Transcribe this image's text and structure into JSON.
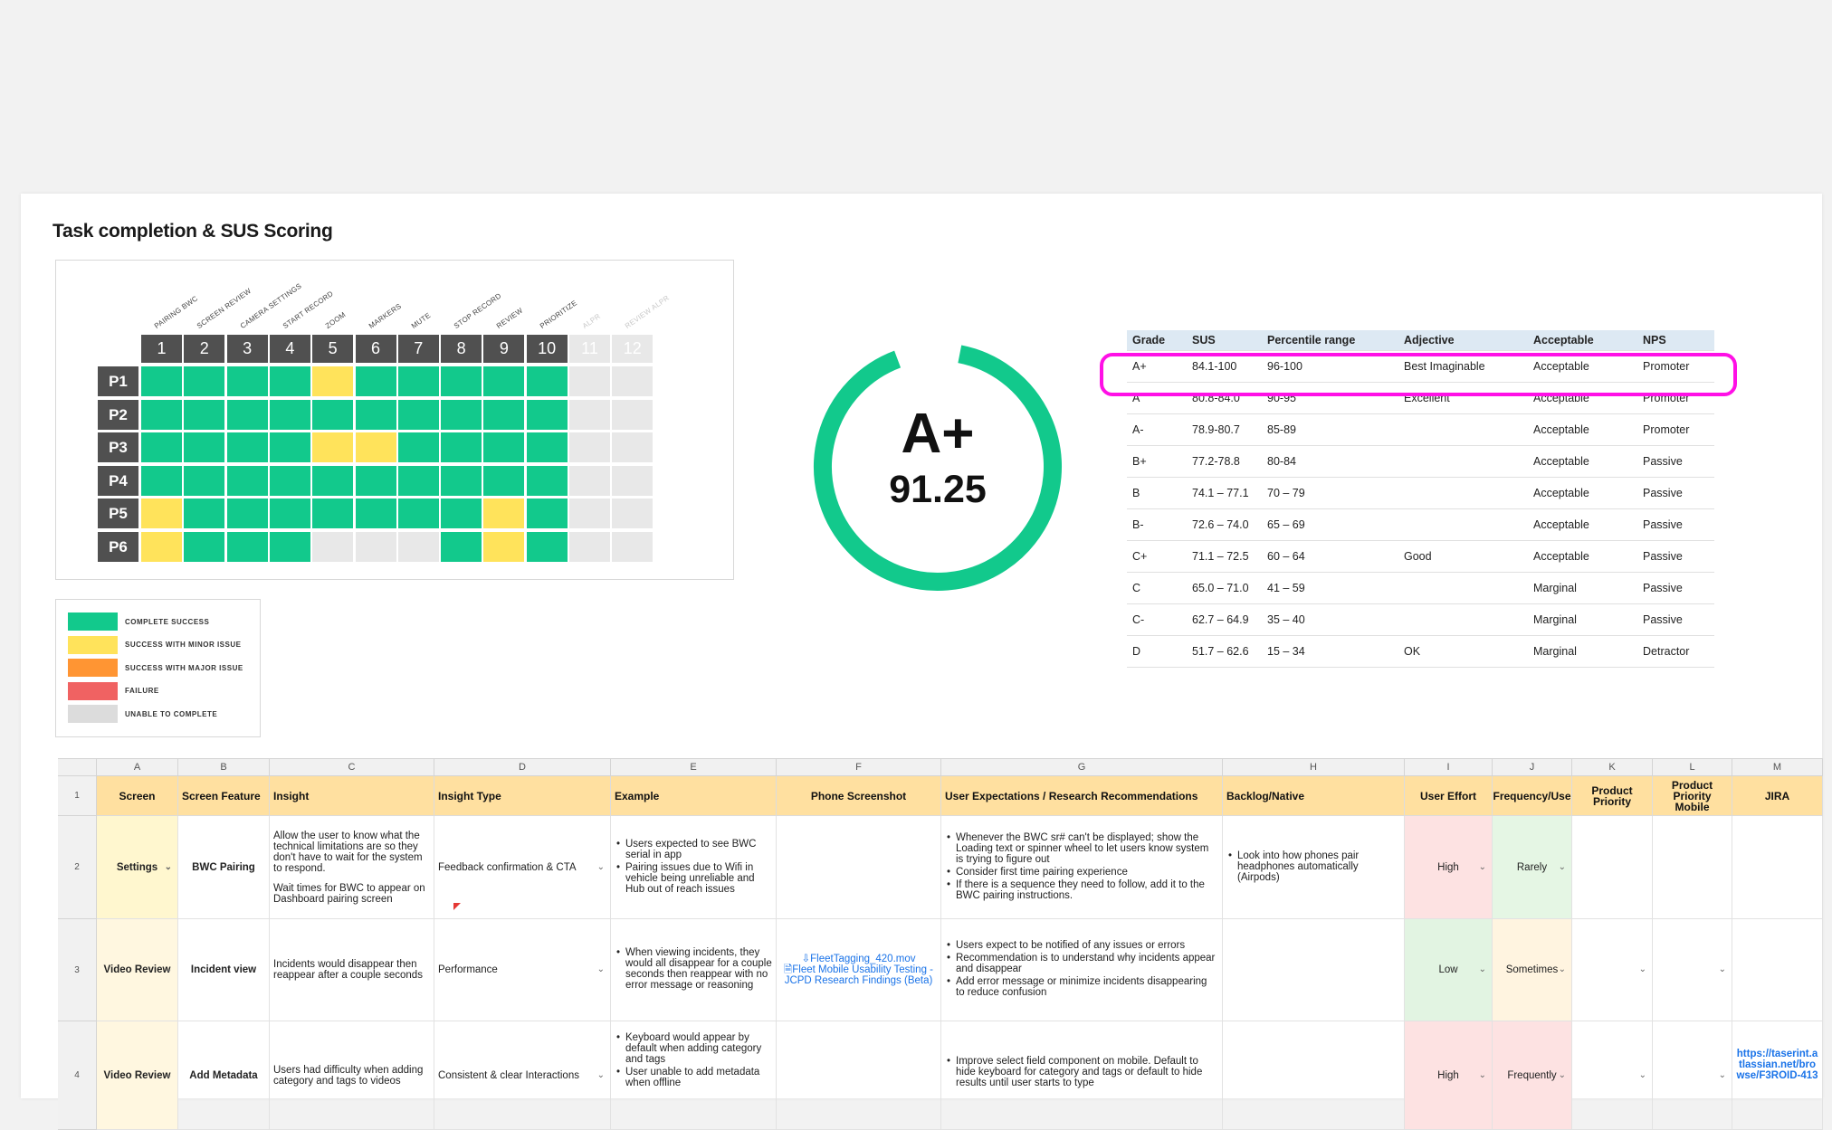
{
  "title": "Task completion & SUS Scoring",
  "tasks": {
    "labels": [
      "PAIRING BWC",
      "SCREEN REVIEW",
      "CAMERA SETTINGS",
      "START RECORD",
      "ZOOM",
      "MARKERS",
      "MUTE",
      "STOP RECORD",
      "REVIEW",
      "PRIORITIZE",
      "ALPR",
      "REVIEW ALPR"
    ],
    "numbers": [
      "1",
      "2",
      "3",
      "4",
      "5",
      "6",
      "7",
      "8",
      "9",
      "10",
      "11",
      "12"
    ]
  },
  "participants": [
    {
      "label": "P1",
      "cells": [
        "g",
        "g",
        "g",
        "g",
        "y",
        "g",
        "g",
        "g",
        "g",
        "g",
        "n",
        "n"
      ]
    },
    {
      "label": "P2",
      "cells": [
        "g",
        "g",
        "g",
        "g",
        "g",
        "g",
        "g",
        "g",
        "g",
        "g",
        "n",
        "n"
      ]
    },
    {
      "label": "P3",
      "cells": [
        "g",
        "g",
        "g",
        "g",
        "y",
        "y",
        "g",
        "g",
        "g",
        "g",
        "n",
        "n"
      ]
    },
    {
      "label": "P4",
      "cells": [
        "g",
        "g",
        "g",
        "g",
        "g",
        "g",
        "g",
        "g",
        "g",
        "g",
        "n",
        "n"
      ]
    },
    {
      "label": "P5",
      "cells": [
        "y",
        "g",
        "g",
        "g",
        "g",
        "g",
        "g",
        "g",
        "y",
        "g",
        "n",
        "n"
      ]
    },
    {
      "label": "P6",
      "cells": [
        "y",
        "g",
        "g",
        "g",
        "n",
        "n",
        "n",
        "g",
        "y",
        "g",
        "n",
        "n"
      ]
    }
  ],
  "legend": [
    {
      "label": "COMPLETE SUCCESS",
      "color": "#12c98c"
    },
    {
      "label": "SUCCESS WITH MINOR ISSUE",
      "color": "#ffe35b"
    },
    {
      "label": "SUCCESS WITH MAJOR ISSUE",
      "color": "#ff9533"
    },
    {
      "label": "FAILURE",
      "color": "#f06262"
    },
    {
      "label": "UNABLE TO COMPLETE",
      "color": "#dcdcdc"
    }
  ],
  "score": {
    "grade": "A+",
    "value": "91.25",
    "ring_fraction": 0.9125,
    "ring_color": "#12c98c"
  },
  "sus_table": {
    "headers": [
      "Grade",
      "SUS",
      "Percentile range",
      "Adjective",
      "Acceptable",
      "NPS"
    ],
    "rows": [
      [
        "A+",
        "84.1-100",
        "96-100",
        "Best Imaginable",
        "Acceptable",
        "Promoter"
      ],
      [
        "A",
        "80.8-84.0",
        "90-95",
        "Excellent",
        "Acceptable",
        "Promoter"
      ],
      [
        "A-",
        "78.9-80.7",
        "85-89",
        "",
        "Acceptable",
        "Promoter"
      ],
      [
        "B+",
        "77.2-78.8",
        "80-84",
        "",
        "Acceptable",
        "Passive"
      ],
      [
        "B",
        "74.1 – 77.1",
        "70 – 79",
        "",
        "Acceptable",
        "Passive"
      ],
      [
        "B-",
        "72.6 – 74.0",
        "65 – 69",
        "",
        "Acceptable",
        "Passive"
      ],
      [
        "C+",
        "71.1 – 72.5",
        "60 – 64",
        "Good",
        "Acceptable",
        "Passive"
      ],
      [
        "C",
        "65.0 – 71.0",
        "41 – 59",
        "",
        "Marginal",
        "Passive"
      ],
      [
        "C-",
        "62.7 – 64.9",
        "35 – 40",
        "",
        "Marginal",
        "Passive"
      ],
      [
        "D",
        "51.7 – 62.6",
        "15 – 34",
        "OK",
        "Marginal",
        "Detractor"
      ]
    ],
    "highlight_color": "#ff10e6"
  },
  "sheet": {
    "col_letters": [
      "A",
      "B",
      "C",
      "D",
      "E",
      "F",
      "G",
      "H",
      "I",
      "J",
      "K",
      "L",
      "M"
    ],
    "headers": [
      "Screen",
      "Screen Feature",
      "Insight",
      "Insight Type",
      "Example",
      "Phone Screenshot",
      "User Expectations / Research Recommendations",
      "Backlog/Native",
      "User Effort",
      "Frequency/Use",
      "Product Priority",
      "Product Priority Mobile",
      "JIRA"
    ],
    "row_numbers": [
      "1",
      "2",
      "3",
      "4"
    ],
    "rows": [
      {
        "screen": "Settings",
        "feature": "BWC Pairing",
        "insight": [
          "Allow the user to know what the technical limitations are so they don't have to wait for the system to respond.",
          "Wait times for BWC to appear on Dashboard pairing screen"
        ],
        "insight_type": "Feedback confirmation & CTA",
        "example": [
          "Users expected to see BWC serial in app",
          "Pairing issues due to Wifi in vehicle being unreliable and Hub out of reach issues"
        ],
        "screenshot": [],
        "recommendations": [
          "Whenever the BWC sr# can't be displayed; show the Loading text or spinner wheel to let users know system is trying to figure out",
          "Consider first time pairing experience",
          "If there is a sequence they need to follow, add it to the BWC pairing instructions."
        ],
        "backlog": [
          "Look into how phones pair headphones automatically (Airpods)"
        ],
        "effort": "High",
        "frequency": "Rarely",
        "jira": ""
      },
      {
        "screen": "Video Review",
        "feature": "Incident view",
        "insight": [
          "Incidents would disappear then reappear after a couple seconds"
        ],
        "insight_type": "Performance",
        "example": [
          "When viewing incidents, they would all disappear for a couple seconds then reappear with no error message or reasoning"
        ],
        "screenshot": [
          "⇩FleetTagging_420.mov",
          "🗎Fleet Mobile Usability Testing - JCPD Research Findings (Beta)"
        ],
        "recommendations": [
          "Users expect to be notified of any issues or errors",
          "Recommendation is to understand why incidents appear and disappear",
          "Add error message or minimize incidents disappearing to reduce confusion"
        ],
        "backlog": [],
        "effort": "Low",
        "frequency": "Sometimes",
        "jira": ""
      },
      {
        "screen": "Video Review",
        "feature": "Add Metadata",
        "insight": [
          "Users had difficulty when adding category and tags to videos"
        ],
        "insight_type": "Consistent & clear Interactions",
        "example": [
          "Keyboard would appear by default when adding category and tags",
          "User unable to add metadata when offline"
        ],
        "screenshot": [],
        "recommendations": [
          "Improve select field component on mobile. Default to hide keyboard for category and tags or default to hide results until user starts to type"
        ],
        "backlog": [],
        "effort": "High",
        "frequency": "Frequently",
        "jira": "https://taserint.atlassian.net/browse/F3ROID-413"
      }
    ]
  }
}
